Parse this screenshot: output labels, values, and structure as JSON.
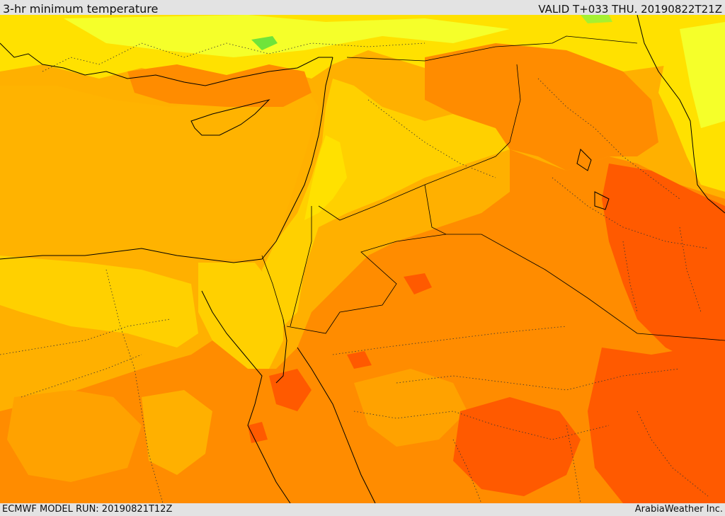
{
  "header": {
    "title": "3-hr minimum temperature",
    "valid": "VALID T+033 THU. 20190822T21Z"
  },
  "footer": {
    "model_run": "ECMWF MODEL RUN: 20190821T12Z",
    "credit": "ArabiaWeather Inc."
  },
  "palette": {
    "warm_yellow": "#ffe100",
    "yellow_light": "#f5ff2a",
    "green_cool": "#6fe43a",
    "amber": "#ffb000",
    "amber_light": "#ffd000",
    "orange": "#ff8c00",
    "red_orange": "#ff5a00",
    "grey_frame": "#e3e3e3"
  }
}
